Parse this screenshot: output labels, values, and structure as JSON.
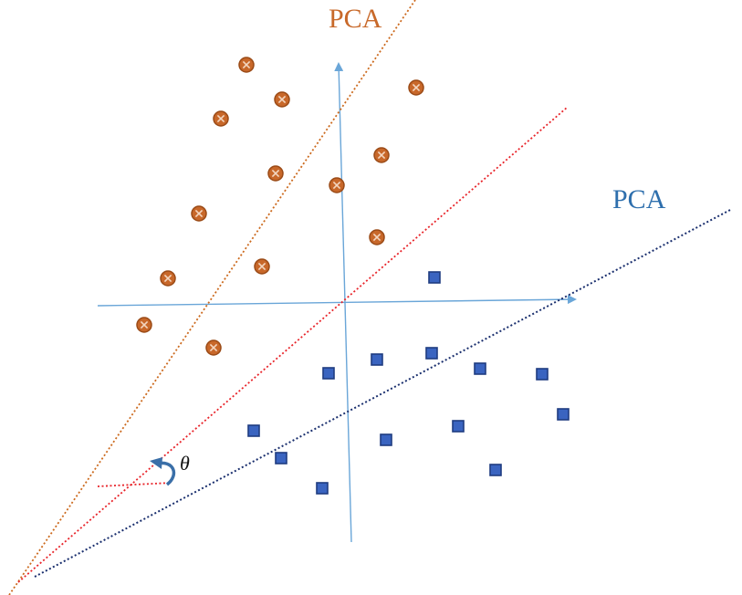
{
  "labels": {
    "pca_orange": "PCA",
    "pca_blue": "PCA",
    "theta": "θ"
  },
  "colors": {
    "orange_line": "#cc6a1e",
    "orange_marker_fill": "#c8682a",
    "orange_marker_edge": "#9a4a16",
    "red_line": "#e8242a",
    "blue_line": "#1a2f6e",
    "axis": "#6aa6d8",
    "square_fill": "#3a64c0",
    "square_edge": "#1f3c80",
    "label_orange": "#c8692a",
    "label_blue": "#2e6fad",
    "rotation_arrow": "#3a6fa8"
  },
  "class_a_count": 13,
  "class_b_count": 14
}
